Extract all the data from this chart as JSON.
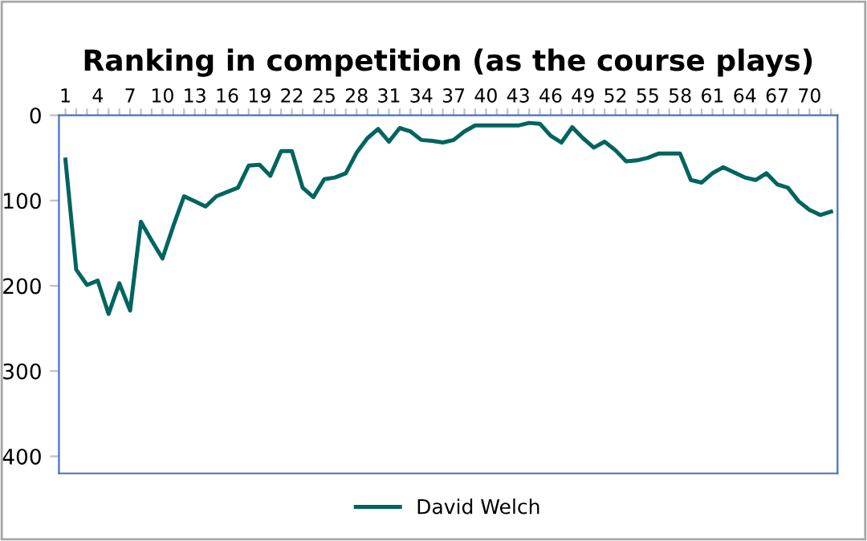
{
  "chart_data": {
    "type": "line",
    "title": "Ranking in competition (as the course plays)",
    "categories": [
      "1",
      null,
      null,
      "4",
      null,
      null,
      "7",
      null,
      null,
      "10",
      null,
      null,
      "13",
      null,
      null,
      "16",
      null,
      null,
      "19",
      null,
      null,
      "22",
      null,
      null,
      "25",
      null,
      null,
      "28",
      null,
      null,
      "31",
      null,
      null,
      "34",
      null,
      null,
      "37",
      null,
      null,
      "40",
      null,
      null,
      "43",
      null,
      null,
      "46",
      null,
      null,
      "49",
      null,
      null,
      "52",
      null,
      null,
      "55",
      null,
      null,
      "58",
      null,
      null,
      "61",
      null,
      null,
      "64",
      null,
      null,
      "67",
      null,
      null,
      "70",
      null,
      null
    ],
    "series": [
      {
        "name": "David Welch",
        "color": "#00645f",
        "values": [
          52,
          181,
          199,
          194,
          233,
          197,
          229,
          125,
          147,
          168,
          130,
          95,
          101,
          107,
          95,
          90,
          85,
          59,
          58,
          71,
          42,
          42,
          85,
          96,
          75,
          73,
          68,
          44,
          27,
          16,
          31,
          15,
          19,
          29,
          30,
          32,
          29,
          19,
          12,
          12,
          12,
          12,
          12,
          9,
          10,
          24,
          32,
          14,
          27,
          38,
          31,
          41,
          54,
          53,
          50,
          45,
          45,
          45,
          76,
          79,
          68,
          61,
          67,
          73,
          76,
          68,
          81,
          85,
          101,
          111,
          117,
          113
        ]
      }
    ],
    "ylim": [
      420,
      0
    ],
    "yticks": [
      0,
      100,
      200,
      300,
      400
    ],
    "grid": false,
    "legend": "bottom",
    "marker": "none",
    "line_style": "solid"
  }
}
